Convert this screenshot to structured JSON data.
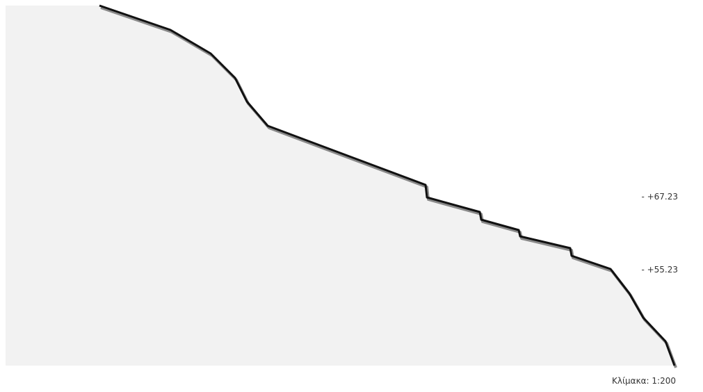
{
  "levels": [
    {
      "label": "- +67.23"
    },
    {
      "label": "- +55.23"
    }
  ],
  "scale": {
    "label": "Κλίμακα: 1:200"
  },
  "colors": {
    "terrain_fill": "#f2f2f2",
    "profile_line": "#111111",
    "shadow_line": "#8a8a8a"
  }
}
